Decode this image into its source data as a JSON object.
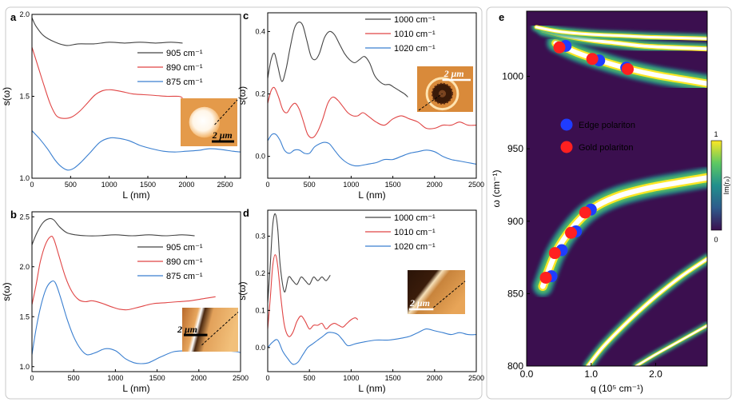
{
  "chart_data": [
    {
      "panel": "a",
      "type": "line",
      "xlabel": "L (nm)",
      "ylabel": "s(ω)",
      "xlim": [
        0,
        2700
      ],
      "ylim": [
        1.0,
        2.0
      ],
      "xticks": [
        0,
        500,
        1000,
        1500,
        2000,
        2500
      ],
      "yticks": [
        1.0,
        1.5,
        2.0
      ],
      "ytick_labels": [
        "1.0",
        "1.5",
        "2.0"
      ],
      "legend": "right",
      "inset": {
        "scalebar": "2 μm",
        "type": "bright-disk"
      },
      "series": [
        {
          "name": "905 cm⁻¹",
          "color": "#444444",
          "x": [
            0,
            50,
            150,
            300,
            450,
            600,
            800,
            1000,
            1200,
            1400,
            1600,
            1800,
            1950
          ],
          "y": [
            1.98,
            1.93,
            1.87,
            1.83,
            1.81,
            1.82,
            1.82,
            1.83,
            1.825,
            1.83,
            1.825,
            1.83,
            1.825
          ]
        },
        {
          "name": "890 cm⁻¹",
          "color": "#e04545",
          "x": [
            0,
            80,
            160,
            240,
            320,
            420,
            520,
            620,
            720,
            820,
            920,
            1020,
            1150,
            1300,
            1450,
            1600,
            1750,
            1900,
            1950
          ],
          "y": [
            1.8,
            1.68,
            1.56,
            1.45,
            1.38,
            1.365,
            1.375,
            1.41,
            1.46,
            1.51,
            1.535,
            1.54,
            1.53,
            1.515,
            1.51,
            1.505,
            1.5,
            1.5,
            1.49
          ]
        },
        {
          "name": "875 cm⁻¹",
          "color": "#3a7fd0",
          "x": [
            0,
            100,
            200,
            300,
            380,
            460,
            540,
            640,
            760,
            880,
            1000,
            1100,
            1250,
            1400,
            1550,
            1700,
            1850,
            2000,
            2150,
            2300,
            2450,
            2600,
            2700
          ],
          "y": [
            1.29,
            1.24,
            1.18,
            1.11,
            1.07,
            1.05,
            1.06,
            1.1,
            1.16,
            1.22,
            1.245,
            1.245,
            1.23,
            1.2,
            1.18,
            1.165,
            1.16,
            1.165,
            1.17,
            1.18,
            1.175,
            1.165,
            1.16
          ]
        }
      ]
    },
    {
      "panel": "b",
      "type": "line",
      "xlabel": "L (nm)",
      "ylabel": "s(ω)",
      "xlim": [
        0,
        2500
      ],
      "ylim": [
        0.95,
        2.55
      ],
      "xticks": [
        0,
        500,
        1000,
        1500,
        2000,
        2500
      ],
      "yticks": [
        1.0,
        1.5,
        2.0,
        2.5
      ],
      "ytick_labels": [
        "1.0",
        "1.5",
        "2.0",
        "2.5"
      ],
      "legend": "right",
      "inset": {
        "scalebar": "2 μm",
        "type": "edge-stripe"
      },
      "series": [
        {
          "name": "905 cm⁻¹",
          "color": "#444444",
          "x": [
            0,
            60,
            130,
            200,
            260,
            330,
            420,
            520,
            650,
            800,
            1000,
            1200,
            1400,
            1600,
            1800,
            1950
          ],
          "y": [
            2.22,
            2.34,
            2.44,
            2.48,
            2.47,
            2.4,
            2.34,
            2.32,
            2.31,
            2.31,
            2.32,
            2.31,
            2.32,
            2.31,
            2.32,
            2.31
          ]
        },
        {
          "name": "890 cm⁻¹",
          "color": "#e04545",
          "x": [
            0,
            50,
            100,
            160,
            220,
            260,
            320,
            400,
            480,
            560,
            640,
            720,
            820,
            950,
            1050,
            1150,
            1300,
            1450,
            1600,
            1750,
            1900,
            2050,
            2200
          ],
          "y": [
            1.62,
            1.82,
            2.05,
            2.22,
            2.3,
            2.28,
            2.12,
            1.9,
            1.75,
            1.67,
            1.65,
            1.66,
            1.64,
            1.6,
            1.575,
            1.57,
            1.6,
            1.63,
            1.64,
            1.65,
            1.66,
            1.68,
            1.7
          ]
        },
        {
          "name": "875 cm⁻¹",
          "color": "#3a7fd0",
          "x": [
            0,
            50,
            110,
            170,
            230,
            280,
            340,
            420,
            500,
            580,
            660,
            760,
            880,
            1000,
            1120,
            1220,
            1300,
            1400,
            1550,
            1700,
            1850,
            2000,
            2150,
            2300,
            2450,
            2500
          ],
          "y": [
            1.12,
            1.38,
            1.62,
            1.78,
            1.85,
            1.84,
            1.7,
            1.48,
            1.3,
            1.18,
            1.12,
            1.14,
            1.18,
            1.16,
            1.08,
            1.04,
            1.03,
            1.04,
            1.1,
            1.15,
            1.16,
            1.17,
            1.17,
            1.16,
            1.15,
            1.14
          ]
        }
      ]
    },
    {
      "panel": "c",
      "type": "line",
      "xlabel": "L (nm)",
      "ylabel": "s(ω)",
      "xlim": [
        0,
        2500
      ],
      "ylim": [
        -0.07,
        0.46
      ],
      "xticks": [
        0,
        500,
        1000,
        1500,
        2000,
        2500
      ],
      "yticks": [
        0.0,
        0.2,
        0.4
      ],
      "ytick_labels": [
        "0.0",
        "0.2",
        "0.4"
      ],
      "legend": "top-right",
      "inset": {
        "scalebar": "2 μm",
        "type": "ring-disk"
      },
      "series": [
        {
          "name": "1000 cm⁻¹",
          "color": "#444444",
          "x": [
            0,
            40,
            80,
            120,
            170,
            220,
            270,
            320,
            370,
            420,
            470,
            520,
            570,
            620,
            680,
            740,
            800,
            860,
            920,
            980,
            1040,
            1100,
            1160,
            1220,
            1280,
            1340,
            1400,
            1460,
            1520,
            1580,
            1640,
            1680
          ],
          "y": [
            0.25,
            0.31,
            0.33,
            0.29,
            0.24,
            0.28,
            0.35,
            0.41,
            0.43,
            0.42,
            0.37,
            0.32,
            0.31,
            0.33,
            0.38,
            0.4,
            0.39,
            0.36,
            0.33,
            0.31,
            0.3,
            0.31,
            0.32,
            0.3,
            0.26,
            0.24,
            0.23,
            0.23,
            0.22,
            0.21,
            0.2,
            0.19
          ]
        },
        {
          "name": "1010 cm⁻¹",
          "color": "#e04545",
          "x": [
            0,
            40,
            80,
            130,
            180,
            230,
            280,
            330,
            380,
            430,
            480,
            540,
            600,
            660,
            720,
            780,
            840,
            900,
            960,
            1020,
            1080,
            1140,
            1200,
            1300,
            1400,
            1500,
            1600,
            1700,
            1800,
            1900,
            2000,
            2100,
            2200,
            2300,
            2400,
            2500
          ],
          "y": [
            0.17,
            0.21,
            0.22,
            0.19,
            0.15,
            0.14,
            0.16,
            0.17,
            0.15,
            0.11,
            0.07,
            0.06,
            0.08,
            0.12,
            0.17,
            0.19,
            0.18,
            0.16,
            0.14,
            0.13,
            0.13,
            0.14,
            0.13,
            0.11,
            0.1,
            0.12,
            0.13,
            0.12,
            0.11,
            0.09,
            0.09,
            0.1,
            0.1,
            0.11,
            0.1,
            0.1
          ]
        },
        {
          "name": "1020 cm⁻¹",
          "color": "#3a7fd0",
          "x": [
            0,
            50,
            100,
            150,
            200,
            260,
            320,
            380,
            440,
            500,
            560,
            620,
            680,
            740,
            800,
            860,
            920,
            980,
            1040,
            1100,
            1200,
            1300,
            1400,
            1500,
            1600,
            1700,
            1800,
            1900,
            2000,
            2100,
            2200,
            2300,
            2400,
            2500
          ],
          "y": [
            0.05,
            0.07,
            0.07,
            0.05,
            0.02,
            0.01,
            0.02,
            0.02,
            0.01,
            0.01,
            0.03,
            0.04,
            0.045,
            0.04,
            0.02,
            0.0,
            -0.015,
            -0.025,
            -0.03,
            -0.03,
            -0.025,
            -0.02,
            -0.01,
            -0.01,
            0.0,
            0.01,
            0.015,
            0.02,
            0.015,
            0.0,
            -0.01,
            -0.015,
            -0.02,
            -0.025
          ]
        }
      ]
    },
    {
      "panel": "d",
      "type": "line",
      "xlabel": "L (nm)",
      "ylabel": "s(ω)",
      "xlim": [
        0,
        2500
      ],
      "ylim": [
        -0.065,
        0.37
      ],
      "xticks": [
        0,
        500,
        1000,
        1500,
        2000,
        2500
      ],
      "yticks": [
        0.0,
        0.1,
        0.2,
        0.3
      ],
      "ytick_labels": [
        "0.0",
        "0.1",
        "0.2",
        "0.3"
      ],
      "legend": "top-right",
      "inset": {
        "scalebar": "2 μm",
        "type": "edge-diagonal"
      },
      "series": [
        {
          "name": "1000 cm⁻¹",
          "color": "#444444",
          "x": [
            0,
            30,
            60,
            90,
            120,
            150,
            200,
            250,
            300,
            350,
            400,
            450,
            500,
            550,
            600,
            650,
            700,
            750
          ],
          "y": [
            0.12,
            0.22,
            0.33,
            0.36,
            0.32,
            0.22,
            0.15,
            0.19,
            0.18,
            0.17,
            0.19,
            0.18,
            0.17,
            0.19,
            0.18,
            0.19,
            0.18,
            0.195
          ]
        },
        {
          "name": "1010 cm⁻¹",
          "color": "#e04545",
          "x": [
            0,
            30,
            60,
            90,
            120,
            160,
            200,
            250,
            300,
            350,
            400,
            450,
            500,
            550,
            600,
            650,
            700,
            750,
            800,
            850,
            900,
            950,
            1000,
            1050,
            1080
          ],
          "y": [
            0.05,
            0.13,
            0.22,
            0.25,
            0.22,
            0.13,
            0.06,
            0.03,
            0.04,
            0.07,
            0.085,
            0.07,
            0.05,
            0.06,
            0.06,
            0.065,
            0.05,
            0.06,
            0.065,
            0.06,
            0.055,
            0.065,
            0.075,
            0.08,
            0.075
          ]
        },
        {
          "name": "1020 cm⁻¹",
          "color": "#3a7fd0",
          "x": [
            0,
            60,
            120,
            180,
            240,
            300,
            360,
            420,
            480,
            540,
            600,
            660,
            720,
            780,
            840,
            900,
            960,
            1050,
            1150,
            1300,
            1450,
            1600,
            1700,
            1800,
            1900,
            2000,
            2100,
            2200,
            2300,
            2400,
            2500
          ],
          "y": [
            0.0,
            0.015,
            0.02,
            -0.01,
            -0.03,
            -0.045,
            -0.04,
            -0.02,
            0.0,
            0.01,
            0.02,
            0.03,
            0.04,
            0.04,
            0.035,
            0.02,
            0.005,
            0.01,
            0.015,
            0.02,
            0.02,
            0.025,
            0.03,
            0.04,
            0.05,
            0.045,
            0.04,
            0.035,
            0.04,
            0.035,
            0.035
          ]
        }
      ]
    },
    {
      "panel": "e",
      "type": "heatmap",
      "xlabel": "q (10⁵ cm⁻¹)",
      "ylabel": "ω (cm⁻¹)",
      "xlim": [
        0.0,
        2.8
      ],
      "ylim": [
        800,
        1045
      ],
      "xticks": [
        0.0,
        1.0,
        2.0
      ],
      "xtick_labels": [
        "0.0",
        "1.0",
        "2.0"
      ],
      "yticks": [
        800,
        850,
        900,
        950,
        1000
      ],
      "colorbar": {
        "label": "Im(rₚ)",
        "min_label": "0",
        "max_label": "1",
        "colors": [
          "#3b0f4f",
          "#2e5b8c",
          "#21908d",
          "#5ec962",
          "#fde725"
        ]
      },
      "background_color": "#3b0f4f",
      "legend": "upper-middle",
      "bands": [
        {
          "q": [
            0.25,
            0.45,
            0.7,
            1.0,
            1.4,
            1.9,
            2.4,
            2.8
          ],
          "w": [
            855,
            878,
            895,
            908,
            917,
            923,
            927,
            930
          ],
          "width": 4.5
        },
        {
          "q": [
            0.95,
            1.2,
            1.6,
            2.0,
            2.4,
            2.8
          ],
          "w": [
            800,
            814,
            832,
            848,
            862,
            874
          ],
          "width": 2.2
        },
        {
          "q": [
            1.7,
            2.0,
            2.4,
            2.8
          ],
          "w": [
            800,
            808,
            818,
            828
          ],
          "width": 1.5
        },
        {
          "q": [
            0.45,
            0.8,
            1.2,
            1.6,
            2.0,
            2.4,
            2.8
          ],
          "w": [
            1023,
            1016,
            1010,
            1005,
            1001,
            998,
            995
          ],
          "width": 4.0
        },
        {
          "q": [
            0.25,
            0.6,
            1.0,
            1.4,
            1.8,
            2.2,
            2.8
          ],
          "w": [
            1032,
            1028,
            1025,
            1023,
            1021,
            1020,
            1019
          ],
          "width": 2.5
        },
        {
          "q": [
            0.15,
            0.5,
            1.0,
            1.5,
            2.0,
            2.8
          ],
          "w": [
            1034,
            1031,
            1029,
            1028,
            1027,
            1026
          ],
          "width": 2.0
        }
      ],
      "series": [
        {
          "name": "Edge polariton",
          "color": "#1f3cff",
          "q": [
            0.36,
            0.52,
            0.74,
            0.97,
            0.58,
            1.1,
            1.52
          ],
          "w": [
            862,
            880,
            893,
            908,
            1021,
            1011,
            1006
          ]
        },
        {
          "name": "Gold polariton",
          "color": "#ff2020",
          "q": [
            0.31,
            0.45,
            0.7,
            0.92,
            0.52,
            1.03,
            1.58
          ],
          "w": [
            861,
            878,
            892,
            906,
            1020,
            1012,
            1005
          ]
        }
      ]
    }
  ]
}
